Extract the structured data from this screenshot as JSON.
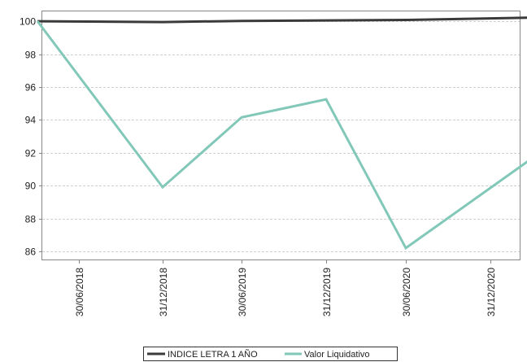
{
  "chart_data": {
    "type": "line",
    "title": "",
    "xlabel": "",
    "ylabel": "",
    "categories": [
      "30/06/2018",
      "31/12/2018",
      "30/06/2019",
      "31/12/2019",
      "30/06/2020",
      "31/12/2020"
    ],
    "ylim": [
      85.5,
      100.6
    ],
    "y_ticks": [
      86,
      88,
      90,
      92,
      94,
      96,
      98,
      100
    ],
    "grid": "horizontal dashed",
    "legend_position": "bottom-center",
    "series": [
      {
        "name": "INDICE LETRA 1 AÑO",
        "color": "#3a3a3a",
        "points": [
          {
            "x": "31/03/2018",
            "y": 100.0
          },
          {
            "x": "31/12/2018",
            "y": 99.95
          },
          {
            "x": "30/06/2019",
            "y": 100.02
          },
          {
            "x": "31/12/2019",
            "y": 100.05
          },
          {
            "x": "30/06/2020",
            "y": 100.08
          },
          {
            "x": "31/03/2021",
            "y": 100.22
          }
        ]
      },
      {
        "name": "Valor Liquidativo",
        "color": "#82c8b9",
        "points": [
          {
            "x": "31/03/2018",
            "y": 100.0
          },
          {
            "x": "31/12/2018",
            "y": 89.9
          },
          {
            "x": "30/06/2019",
            "y": 94.15
          },
          {
            "x": "31/12/2019",
            "y": 95.25
          },
          {
            "x": "30/06/2020",
            "y": 86.2
          },
          {
            "x": "31/03/2021",
            "y": 91.65
          }
        ]
      }
    ]
  }
}
